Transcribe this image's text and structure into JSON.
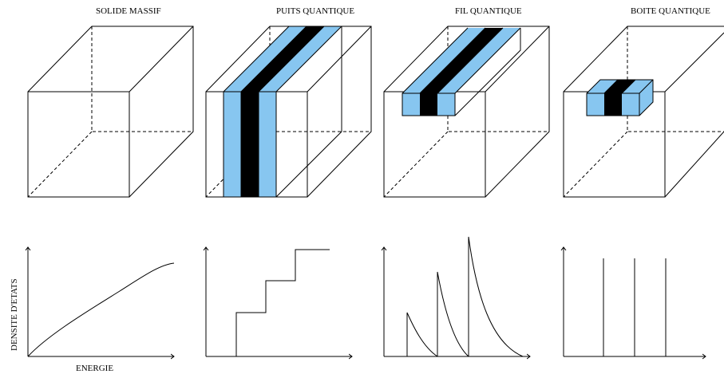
{
  "colors": {
    "barrier": "#87c6f0",
    "well": "#000000",
    "line": "#000000"
  },
  "panels": [
    {
      "id": "bulk",
      "title": "SOLIDE MASSIF",
      "dos": "sqrt"
    },
    {
      "id": "well",
      "title": "PUITS QUANTIQUE",
      "dos": "steps"
    },
    {
      "id": "wire",
      "title": "FIL QUANTIQUE",
      "dos": "inverse-sqrt"
    },
    {
      "id": "dot",
      "title": "BOITE QUANTIQUE",
      "dos": "delta"
    }
  ],
  "axes": {
    "ylabel": "DENSITE D'ETATS",
    "xlabel": "ENERGIE"
  }
}
